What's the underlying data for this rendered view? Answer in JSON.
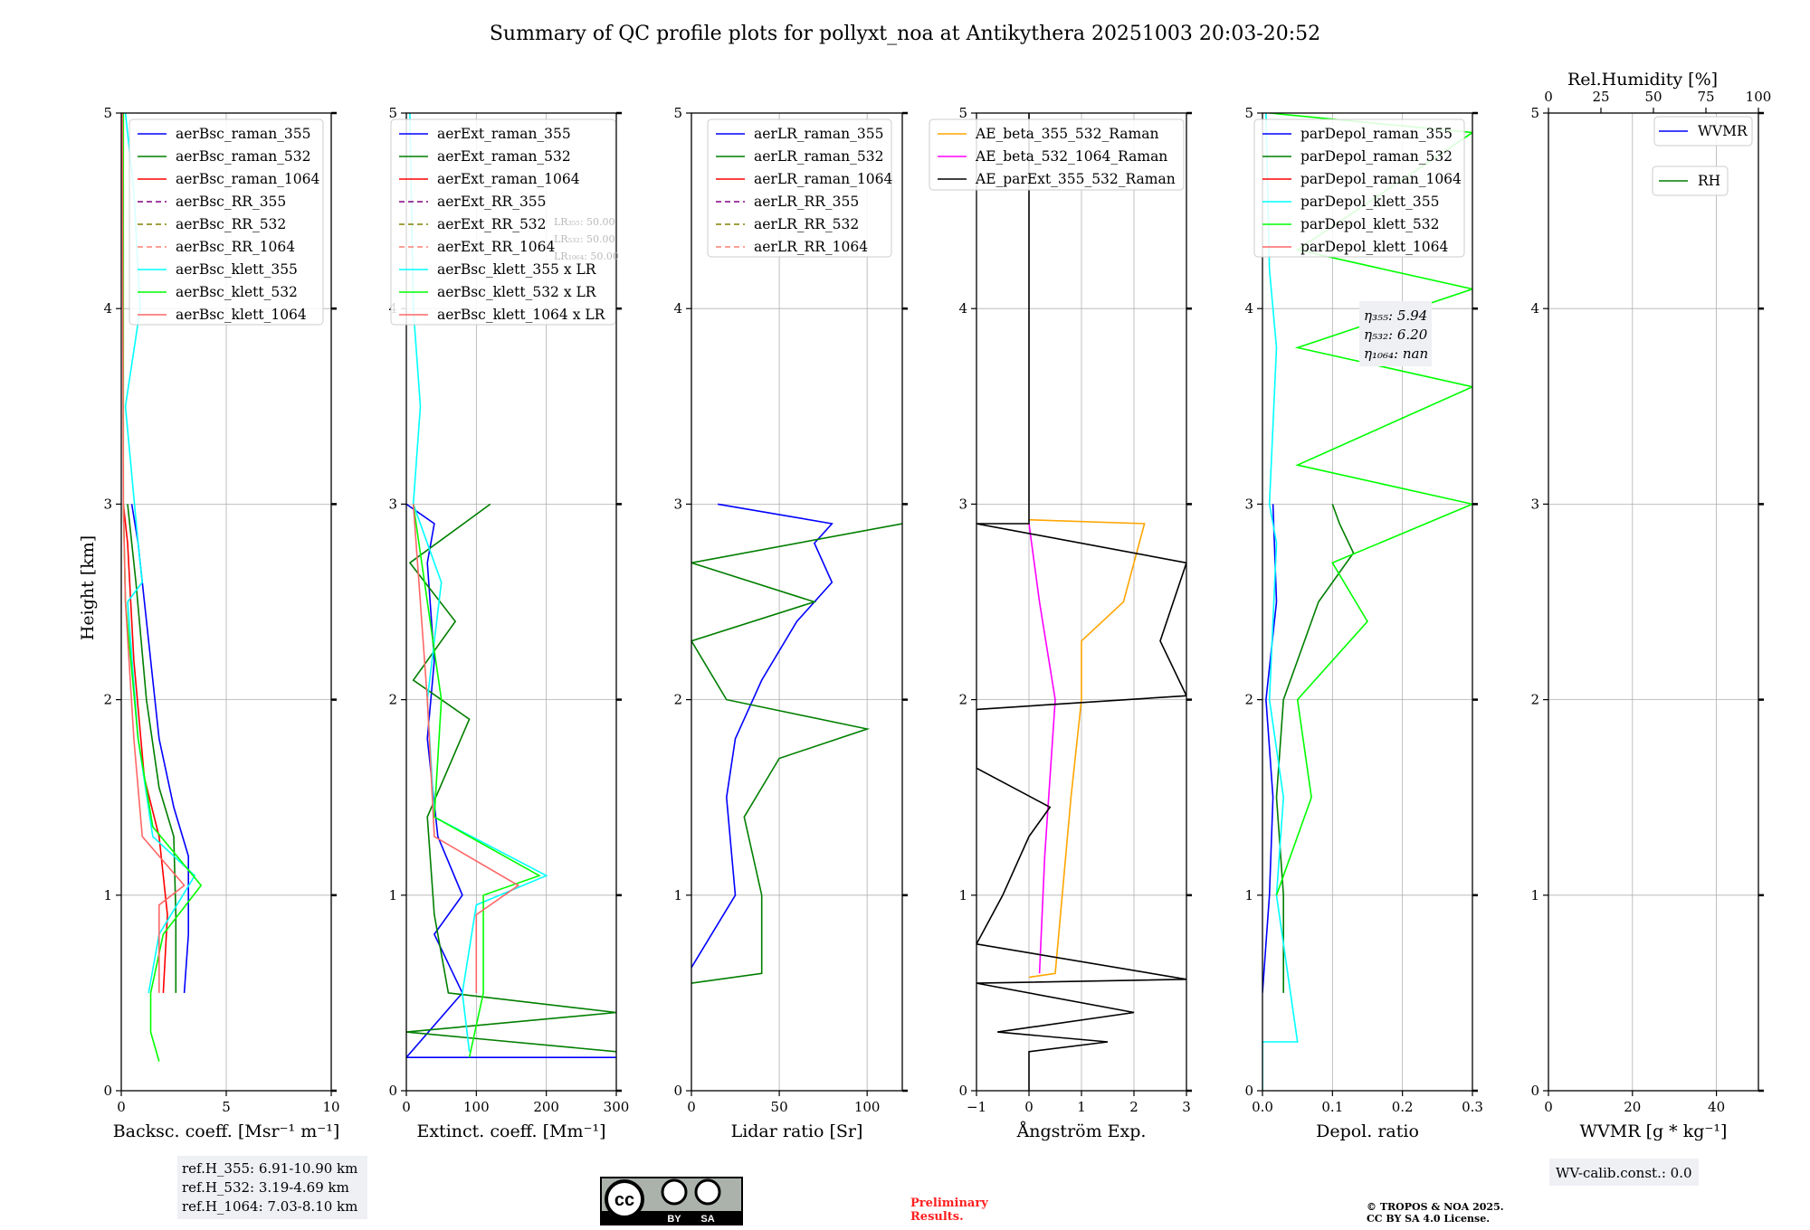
{
  "title": "Summary of QC profile plots for pollyxt_noa at Antikythera 20251003 20:03-20:52",
  "y_axis": {
    "label": "Height [km]",
    "ticks": [
      "0",
      "1",
      "2",
      "3",
      "4",
      "5"
    ],
    "range": [
      0,
      5
    ]
  },
  "chart_data": [
    {
      "type": "line",
      "name": "backscatter",
      "xlabel": "Backsc. coeff. [Msr⁻¹ m⁻¹]",
      "xlim": [
        0,
        10
      ],
      "xticks": [
        0,
        5,
        10
      ],
      "series": [
        {
          "name": "aerBsc_raman_355",
          "color": "#0000ff",
          "dash": "",
          "points": [
            [
              3.0,
              0.5
            ],
            [
              3.2,
              0.8
            ],
            [
              3.2,
              1.2
            ],
            [
              2.5,
              1.45
            ],
            [
              1.8,
              1.8
            ],
            [
              1.3,
              2.3
            ],
            [
              0.8,
              2.8
            ],
            [
              0.5,
              3.0
            ]
          ]
        },
        {
          "name": "aerBsc_raman_532",
          "color": "#007f00",
          "dash": "",
          "points": [
            [
              2.6,
              0.5
            ],
            [
              2.6,
              0.9
            ],
            [
              2.5,
              1.3
            ],
            [
              1.8,
              1.55
            ],
            [
              1.2,
              2.0
            ],
            [
              0.7,
              2.6
            ],
            [
              0.3,
              3.0
            ]
          ]
        },
        {
          "name": "aerBsc_raman_1064",
          "color": "#ff0000",
          "dash": "",
          "points": [
            [
              2.0,
              0.5
            ],
            [
              2.2,
              0.9
            ],
            [
              1.8,
              1.3
            ],
            [
              1.1,
              1.6
            ],
            [
              0.6,
              2.2
            ],
            [
              0.3,
              2.8
            ],
            [
              0.1,
              3.0
            ]
          ]
        },
        {
          "name": "aerBsc_RR_355",
          "color": "#800080",
          "dash": "6,4",
          "points": []
        },
        {
          "name": "aerBsc_RR_532",
          "color": "#808000",
          "dash": "6,4",
          "points": []
        },
        {
          "name": "aerBsc_RR_1064",
          "color": "#fa8072",
          "dash": "6,4",
          "points": []
        },
        {
          "name": "aerBsc_klett_355",
          "color": "#00ffff",
          "dash": "",
          "points": [
            [
              1.3,
              0.5
            ],
            [
              1.8,
              0.8
            ],
            [
              3.5,
              1.1
            ],
            [
              1.5,
              1.3
            ],
            [
              0.8,
              1.8
            ],
            [
              0.3,
              2.5
            ],
            [
              1.0,
              2.6
            ],
            [
              0.8,
              2.8
            ],
            [
              0.2,
              3.5
            ],
            [
              0.9,
              4.0
            ],
            [
              0.6,
              4.6
            ],
            [
              0.2,
              5.0
            ]
          ]
        },
        {
          "name": "aerBsc_klett_532",
          "color": "#00ff00",
          "dash": "",
          "points": [
            [
              1.8,
              0.15
            ],
            [
              1.4,
              0.3
            ],
            [
              1.4,
              0.5
            ],
            [
              2.0,
              0.8
            ],
            [
              3.8,
              1.05
            ],
            [
              1.5,
              1.35
            ],
            [
              0.8,
              1.8
            ],
            [
              0.2,
              2.5
            ],
            [
              0.1,
              3.0
            ],
            [
              0.1,
              5.0
            ]
          ]
        },
        {
          "name": "aerBsc_klett_1064",
          "color": "#ff6666",
          "dash": "",
          "points": [
            [
              1.8,
              0.5
            ],
            [
              1.8,
              0.95
            ],
            [
              3.0,
              1.05
            ],
            [
              1.0,
              1.3
            ],
            [
              0.6,
              1.8
            ],
            [
              0.2,
              2.5
            ],
            [
              0.1,
              3.0
            ],
            [
              0.05,
              5.0
            ]
          ]
        }
      ],
      "info": [
        "ref.H_355: 6.91-10.90 km",
        "ref.H_532: 3.19-4.69 km",
        "ref.H_1064: 7.03-8.10 km"
      ]
    },
    {
      "type": "line",
      "name": "extinction",
      "xlabel": "Extinct. coeff. [Mm⁻¹]",
      "xlim": [
        0,
        300
      ],
      "xticks": [
        0,
        100,
        200,
        300
      ],
      "series": [
        {
          "name": "aerExt_raman_355",
          "color": "#0000ff",
          "dash": "",
          "points": [
            [
              300,
              0.17
            ],
            [
              0,
              0.17
            ],
            [
              80,
              0.5
            ],
            [
              40,
              0.8
            ],
            [
              80,
              1.0
            ],
            [
              45,
              1.3
            ],
            [
              30,
              1.8
            ],
            [
              40,
              2.2
            ],
            [
              30,
              2.7
            ],
            [
              40,
              2.9
            ],
            [
              0,
              3.0
            ]
          ]
        },
        {
          "name": "aerExt_raman_532",
          "color": "#007f00",
          "dash": "",
          "points": [
            [
              300,
              0.2
            ],
            [
              0,
              0.3
            ],
            [
              300,
              0.4
            ],
            [
              60,
              0.5
            ],
            [
              40,
              0.9
            ],
            [
              30,
              1.4
            ],
            [
              90,
              1.9
            ],
            [
              10,
              2.1
            ],
            [
              70,
              2.4
            ],
            [
              5,
              2.7
            ],
            [
              120,
              3.0
            ]
          ]
        },
        {
          "name": "aerExt_raman_1064",
          "color": "#ff0000",
          "dash": "",
          "points": []
        },
        {
          "name": "aerExt_RR_355",
          "color": "#800080",
          "dash": "6,4",
          "points": []
        },
        {
          "name": "aerExt_RR_532",
          "color": "#808000",
          "dash": "6,4",
          "points": []
        },
        {
          "name": "aerExt_RR_1064",
          "color": "#fa8072",
          "dash": "6,4",
          "points": []
        },
        {
          "name": "aerBsc_klett_355 x LR",
          "color": "#00ffff",
          "dash": "",
          "points": [
            [
              90,
              0.2
            ],
            [
              80,
              0.5
            ],
            [
              100,
              0.95
            ],
            [
              200,
              1.1
            ],
            [
              40,
              1.4
            ],
            [
              30,
              2.0
            ],
            [
              50,
              2.6
            ],
            [
              10,
              3.0
            ],
            [
              20,
              3.5
            ],
            [
              10,
              4.0
            ],
            [
              5,
              5.0
            ]
          ]
        },
        {
          "name": "aerBsc_klett_532 x LR",
          "color": "#00ff00",
          "dash": "",
          "points": [
            [
              90,
              0.17
            ],
            [
              110,
              0.5
            ],
            [
              110,
              1.0
            ],
            [
              190,
              1.1
            ],
            [
              40,
              1.4
            ],
            [
              50,
              2.0
            ],
            [
              30,
              2.5
            ],
            [
              10,
              3.0
            ]
          ]
        },
        {
          "name": "aerBsc_klett_1064 x LR",
          "color": "#ff6666",
          "dash": "",
          "points": [
            [
              100,
              0.5
            ],
            [
              100,
              0.9
            ],
            [
              160,
              1.05
            ],
            [
              40,
              1.3
            ],
            [
              30,
              2.0
            ],
            [
              10,
              3.0
            ]
          ]
        }
      ],
      "info": [
        "LR₃₅₅: 50.00",
        "LR₅₃₂: 50.00",
        "LR₁₀₆₄: 50.00"
      ]
    },
    {
      "type": "line",
      "name": "lidar-ratio",
      "xlabel": "Lidar ratio [Sr]",
      "xlim": [
        0,
        120
      ],
      "xticks": [
        0,
        50,
        100
      ],
      "series": [
        {
          "name": "aerLR_raman_355",
          "color": "#0000ff",
          "dash": "",
          "points": [
            [
              0,
              0.63
            ],
            [
              25,
              1.0
            ],
            [
              20,
              1.5
            ],
            [
              25,
              1.8
            ],
            [
              40,
              2.1
            ],
            [
              60,
              2.4
            ],
            [
              80,
              2.6
            ],
            [
              70,
              2.8
            ],
            [
              80,
              2.9
            ],
            [
              15,
              3.0
            ]
          ]
        },
        {
          "name": "aerLR_raman_532",
          "color": "#007f00",
          "dash": "",
          "points": [
            [
              0,
              0.55
            ],
            [
              40,
              0.6
            ],
            [
              40,
              1.0
            ],
            [
              30,
              1.4
            ],
            [
              50,
              1.7
            ],
            [
              100,
              1.85
            ],
            [
              20,
              2.0
            ],
            [
              0,
              2.3
            ],
            [
              70,
              2.5
            ],
            [
              0,
              2.7
            ],
            [
              120,
              2.9
            ]
          ]
        },
        {
          "name": "aerLR_raman_1064",
          "color": "#ff0000",
          "dash": "",
          "points": []
        },
        {
          "name": "aerLR_RR_355",
          "color": "#800080",
          "dash": "6,4",
          "points": []
        },
        {
          "name": "aerLR_RR_532",
          "color": "#808000",
          "dash": "6,4",
          "points": []
        },
        {
          "name": "aerLR_RR_1064",
          "color": "#fa8072",
          "dash": "6,4",
          "points": []
        }
      ]
    },
    {
      "type": "line",
      "name": "angstrom",
      "xlabel": "Ångström Exp.",
      "xlim": [
        -1,
        3
      ],
      "xticks": [
        -1,
        0,
        1,
        2,
        3
      ],
      "series": [
        {
          "name": "AE_beta_355_532_Raman",
          "color": "#ffa500",
          "dash": "",
          "points": [
            [
              0,
              0.58
            ],
            [
              0.5,
              0.6
            ],
            [
              0.8,
              1.5
            ],
            [
              1.0,
              2.0
            ],
            [
              1.0,
              2.3
            ],
            [
              1.8,
              2.5
            ],
            [
              2.2,
              2.9
            ],
            [
              0,
              2.92
            ]
          ]
        },
        {
          "name": "AE_beta_532_1064_Raman",
          "color": "#ff00ff",
          "dash": "",
          "points": [
            [
              0.2,
              0.6
            ],
            [
              0.3,
              1.2
            ],
            [
              0.5,
              2.0
            ],
            [
              0.2,
              2.5
            ],
            [
              0,
              2.9
            ]
          ]
        },
        {
          "name": "AE_parExt_355_532_Raman",
          "color": "#000000",
          "dash": "",
          "points": [
            [
              0,
              0
            ],
            [
              0,
              0.2
            ],
            [
              1.5,
              0.25
            ],
            [
              -0.6,
              0.3
            ],
            [
              2,
              0.4
            ],
            [
              -1,
              0.55
            ],
            [
              3,
              0.57
            ],
            [
              -1,
              0.75
            ],
            [
              -0.5,
              1.0
            ],
            [
              0,
              1.3
            ],
            [
              0.4,
              1.45
            ],
            [
              -1,
              1.65
            ],
            [
              -1,
              1.95
            ],
            [
              3,
              2.02
            ],
            [
              2.5,
              2.3
            ],
            [
              3,
              2.7
            ],
            [
              -1,
              2.9
            ],
            [
              0,
              2.9
            ],
            [
              0,
              5.0
            ]
          ]
        }
      ]
    },
    {
      "type": "line",
      "name": "depolarization",
      "xlabel": "Depol. ratio",
      "xlim": [
        0,
        0.3
      ],
      "xticks": [
        "0.0",
        "0.1",
        "0.2",
        "0.3"
      ],
      "series": [
        {
          "name": "parDepol_raman_355",
          "color": "#0000ff",
          "dash": "",
          "points": [
            [
              0.0,
              0.5
            ],
            [
              0.01,
              1.0
            ],
            [
              0.015,
              1.5
            ],
            [
              0.005,
              2.0
            ],
            [
              0.02,
              2.5
            ],
            [
              0.015,
              3.0
            ]
          ]
        },
        {
          "name": "parDepol_raman_532",
          "color": "#007f00",
          "dash": "",
          "points": [
            [
              0.03,
              0.5
            ],
            [
              0.03,
              1.0
            ],
            [
              0.02,
              1.5
            ],
            [
              0.03,
              2.0
            ],
            [
              0.08,
              2.5
            ],
            [
              0.13,
              2.75
            ],
            [
              0.11,
              2.9
            ],
            [
              0.1,
              3.0
            ]
          ]
        },
        {
          "name": "parDepol_raman_1064",
          "color": "#ff0000",
          "dash": "",
          "points": []
        },
        {
          "name": "parDepol_klett_355",
          "color": "#00ffff",
          "dash": "",
          "points": [
            [
              0.0,
              0.0
            ],
            [
              0.0,
              0.25
            ],
            [
              0.05,
              0.25
            ],
            [
              0.02,
              1.0
            ],
            [
              0.03,
              1.5
            ],
            [
              0.01,
              2.0
            ],
            [
              0.02,
              2.8
            ],
            [
              0.01,
              3.0
            ],
            [
              0.02,
              3.8
            ],
            [
              0.01,
              4.2
            ],
            [
              0.005,
              5.0
            ]
          ]
        },
        {
          "name": "parDepol_klett_532",
          "color": "#00ff00",
          "dash": "",
          "points": [
            [
              0.02,
              1.0
            ],
            [
              0.07,
              1.5
            ],
            [
              0.05,
              2.0
            ],
            [
              0.15,
              2.4
            ],
            [
              0.1,
              2.7
            ],
            [
              0.3,
              3.0
            ],
            [
              0.05,
              3.2
            ],
            [
              0.3,
              3.6
            ],
            [
              0.05,
              3.8
            ],
            [
              0.3,
              4.1
            ],
            [
              0.05,
              4.3
            ],
            [
              0.3,
              4.9
            ],
            [
              0.01,
              5.0
            ]
          ]
        },
        {
          "name": "parDepol_klett_1064",
          "color": "#ff6666",
          "dash": "",
          "points": []
        }
      ],
      "info": [
        "η₃₅₅: 5.94",
        "η₅₃₂: 6.20",
        "η₁₀₆₄: nan"
      ]
    },
    {
      "type": "line",
      "name": "water-vapor",
      "xlabel": "WVMR [g * kg⁻¹]",
      "xlim": [
        0,
        50
      ],
      "xticks": [
        0,
        20,
        40
      ],
      "top_xlabel": "Rel.Humidity [%]",
      "top_xlim": [
        0,
        100
      ],
      "top_xticks": [
        0,
        25,
        50,
        75,
        100
      ],
      "series": [
        {
          "name": "WVMR",
          "color": "#0000ff",
          "dash": "",
          "points": []
        },
        {
          "name": "RH",
          "color": "#007f00",
          "dash": "",
          "points": []
        }
      ],
      "info": [
        "WV-calib.const.: 0.0"
      ]
    }
  ],
  "footer": {
    "license_badge": {
      "cc": "cc",
      "by": "BY",
      "sa": "SA"
    },
    "preliminary": [
      "Preliminary",
      "Results."
    ],
    "copyright": [
      "© TROPOS & NOA 2025.",
      "CC BY SA 4.0 License."
    ]
  }
}
